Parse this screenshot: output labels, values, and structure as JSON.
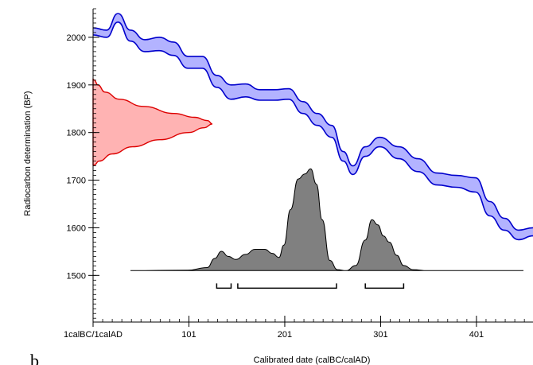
{
  "panel_label": "b",
  "chart_data": {
    "type": "area",
    "title": "",
    "xlabel": "Calibrated date (calBC/calAD)",
    "ylabel": "Radiocarbon determination (BP)",
    "xlim": [
      1,
      460
    ],
    "ylim": [
      1402,
      2060
    ],
    "x_ticks": [
      {
        "value": 1,
        "label": "1calBC/1calAD"
      },
      {
        "value": 101,
        "label": "101"
      },
      {
        "value": 201,
        "label": "201"
      },
      {
        "value": 301,
        "label": "301"
      },
      {
        "value": 401,
        "label": "401"
      }
    ],
    "y_ticks": [
      {
        "value": 1500,
        "label": "1500"
      },
      {
        "value": 1600,
        "label": "1600"
      },
      {
        "value": 1700,
        "label": "1700"
      },
      {
        "value": 1800,
        "label": "1800"
      },
      {
        "value": 1900,
        "label": "1900"
      },
      {
        "value": 2000,
        "label": "2000"
      }
    ],
    "calibration_curve": {
      "color": "#0000cc",
      "fill": "#b3b3ff",
      "x": [
        1,
        15,
        27,
        40,
        55,
        70,
        85,
        100,
        115,
        130,
        145,
        160,
        175,
        190,
        205,
        220,
        235,
        250,
        262,
        272,
        285,
        300,
        320,
        340,
        360,
        380,
        400,
        415,
        430,
        445,
        460
      ],
      "upper": [
        2020,
        2015,
        2050,
        2015,
        1995,
        2000,
        1990,
        1960,
        1960,
        1920,
        1900,
        1902,
        1890,
        1890,
        1892,
        1865,
        1840,
        1815,
        1760,
        1730,
        1770,
        1790,
        1770,
        1745,
        1715,
        1710,
        1705,
        1655,
        1620,
        1595,
        1600
      ],
      "lower": [
        2005,
        2000,
        2032,
        1992,
        1970,
        1972,
        1962,
        1935,
        1935,
        1895,
        1870,
        1875,
        1868,
        1868,
        1870,
        1840,
        1815,
        1790,
        1740,
        1712,
        1750,
        1770,
        1745,
        1718,
        1690,
        1685,
        1675,
        1625,
        1595,
        1575,
        1583
      ]
    },
    "radiocarbon_distribution": {
      "color": "#dd0000",
      "fill": "#ffb3b3",
      "y": [
        1732,
        1740,
        1755,
        1770,
        1785,
        1800,
        1810,
        1818,
        1825,
        1832,
        1840,
        1855,
        1870,
        1885,
        1900,
        1910,
        1912
      ],
      "density": [
        0.01,
        0.05,
        0.16,
        0.33,
        0.56,
        0.8,
        0.93,
        1.0,
        0.96,
        0.85,
        0.68,
        0.42,
        0.22,
        0.1,
        0.04,
        0.01,
        0.0
      ]
    },
    "calibrated_distribution": {
      "fill": "#808080",
      "baseline_y": 1510,
      "x": [
        40,
        100,
        120,
        128,
        135,
        142,
        150,
        160,
        170,
        180,
        188,
        195,
        200,
        207,
        215,
        222,
        228,
        234,
        240,
        248,
        256,
        265,
        275,
        285,
        292,
        298,
        304,
        310,
        318,
        325,
        335,
        350,
        380,
        450
      ],
      "density": [
        0,
        0.005,
        0.03,
        0.12,
        0.19,
        0.14,
        0.11,
        0.16,
        0.21,
        0.21,
        0.17,
        0.13,
        0.25,
        0.6,
        0.9,
        0.95,
        1.0,
        0.85,
        0.5,
        0.1,
        0.01,
        0.0,
        0.05,
        0.3,
        0.5,
        0.45,
        0.34,
        0.28,
        0.15,
        0.05,
        0.01,
        0.0,
        0.0,
        0.0
      ]
    },
    "hpd_ranges": [
      {
        "from": 130,
        "to": 145
      },
      {
        "from": 152,
        "to": 255
      },
      {
        "from": 285,
        "to": 325
      }
    ]
  }
}
